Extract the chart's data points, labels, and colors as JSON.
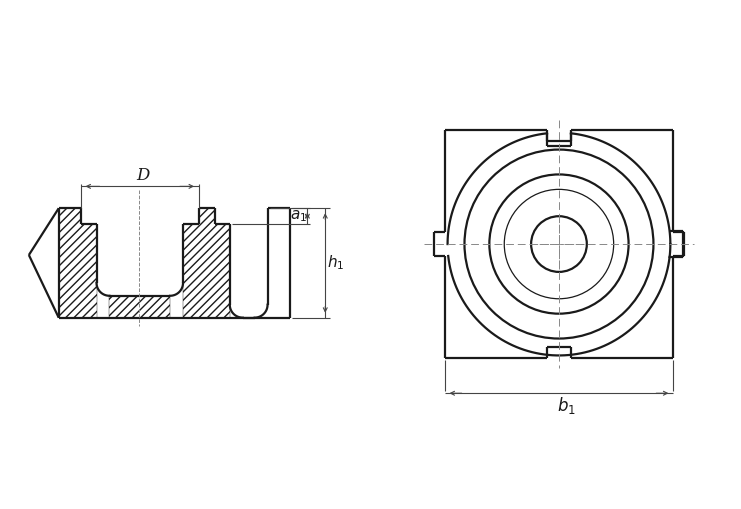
{
  "bg": "#ffffff",
  "lc": "#1a1a1a",
  "dc": "#444444",
  "lw_tk": 1.6,
  "lw_tn": 0.9,
  "lw_d": 0.8,
  "lw_cl": 0.7,
  "fig_w": 7.41,
  "fig_h": 5.09,
  "dpi": 100
}
